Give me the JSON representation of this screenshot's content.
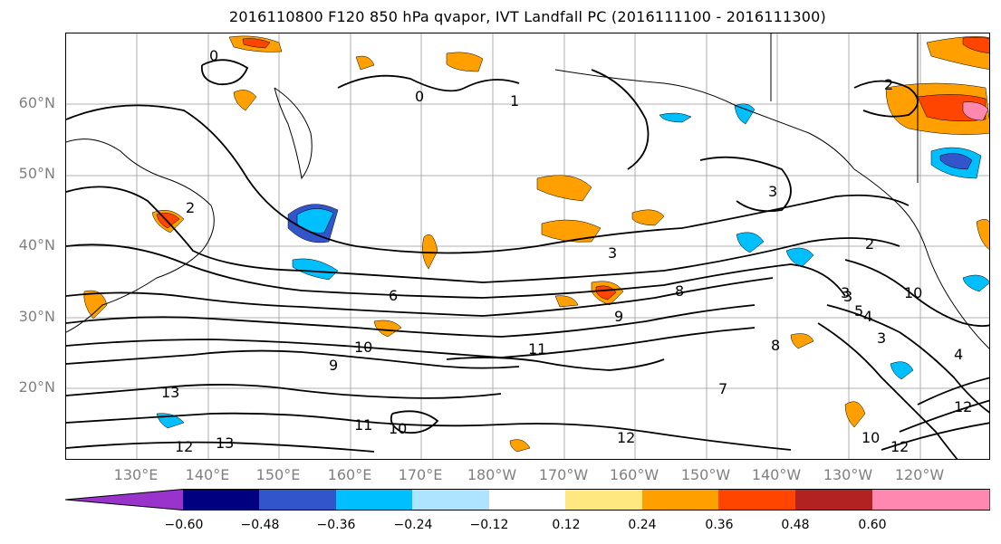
{
  "title": "2016110800 F120 850 hPa qvapor, IVT Landfall PC (2016111100 - 2016111300)",
  "lat_labels": [
    "60°N",
    "50°N",
    "40°N",
    "30°N",
    "20°N"
  ],
  "lon_labels": [
    "130°E",
    "140°E",
    "150°E",
    "160°E",
    "170°E",
    "180°W",
    "170°W",
    "160°W",
    "150°W",
    "140°W",
    "130°W",
    "120°W"
  ],
  "colorbar": {
    "ticks": [
      "−0.60",
      "−0.48",
      "−0.36",
      "−0.24",
      "−0.12",
      "0.12",
      "0.24",
      "0.36",
      "0.48",
      "0.60"
    ],
    "colors": [
      "#9933cc",
      "#000080",
      "#3355cc",
      "#00bfff",
      "#aee4ff",
      "#ffffff",
      "#ffe880",
      "#ffa000",
      "#ff4500",
      "#b22222",
      "#ff88b0"
    ]
  },
  "contour_labels": [
    "0",
    "0",
    "1",
    "2",
    "2",
    "3",
    "3",
    "3",
    "2",
    "6",
    "8",
    "9",
    "10",
    "11",
    "11",
    "10",
    "9",
    "8",
    "3",
    "4",
    "3",
    "5",
    "10",
    "12",
    "12",
    "13",
    "13",
    "12",
    "10",
    "12",
    "7",
    "4"
  ],
  "colors": {
    "contour": "#000000",
    "grid": "#999999",
    "axis_text": "#808080"
  }
}
